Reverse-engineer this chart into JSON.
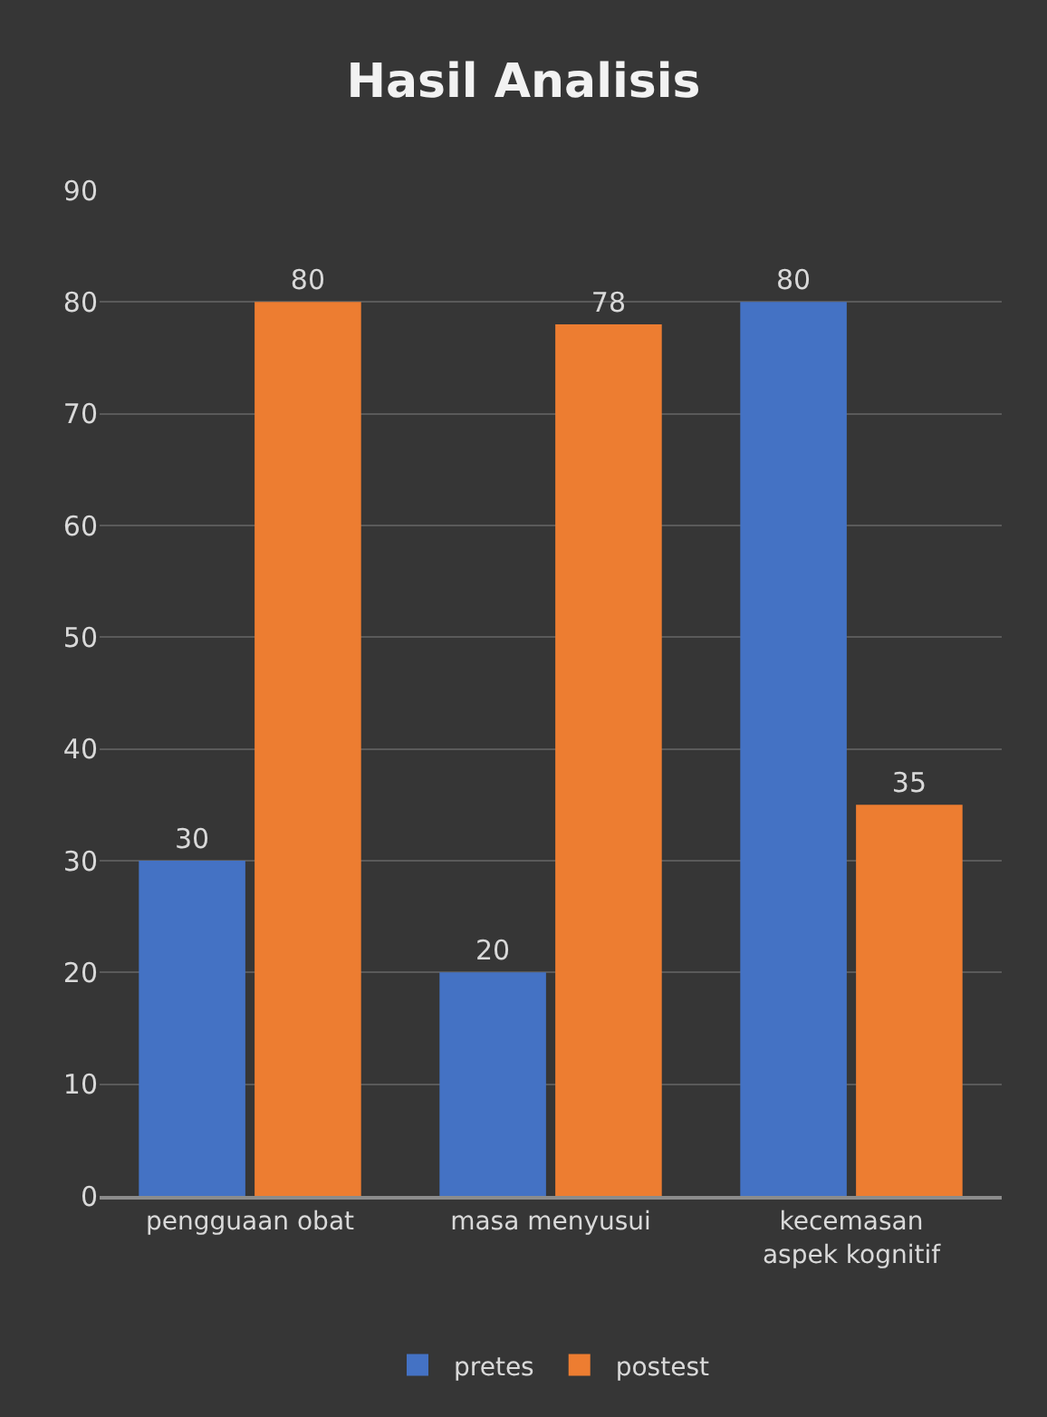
{
  "chart_data": {
    "type": "bar",
    "title": "Hasil Analisis",
    "categories": [
      "pengguaan obat",
      "masa menyusui",
      "kecemasan aspek kognitif"
    ],
    "series": [
      {
        "name": "pretes",
        "color": "#4472c4",
        "values": [
          30,
          20,
          80
        ]
      },
      {
        "name": "postest",
        "color": "#ed7d31",
        "values": [
          80,
          78,
          35
        ]
      }
    ],
    "ylim": [
      0,
      90
    ],
    "yticks": [
      0,
      10,
      20,
      30,
      40,
      50,
      60,
      70,
      80,
      90
    ],
    "grid": "y",
    "legend": "bottom",
    "data_labels": true
  }
}
